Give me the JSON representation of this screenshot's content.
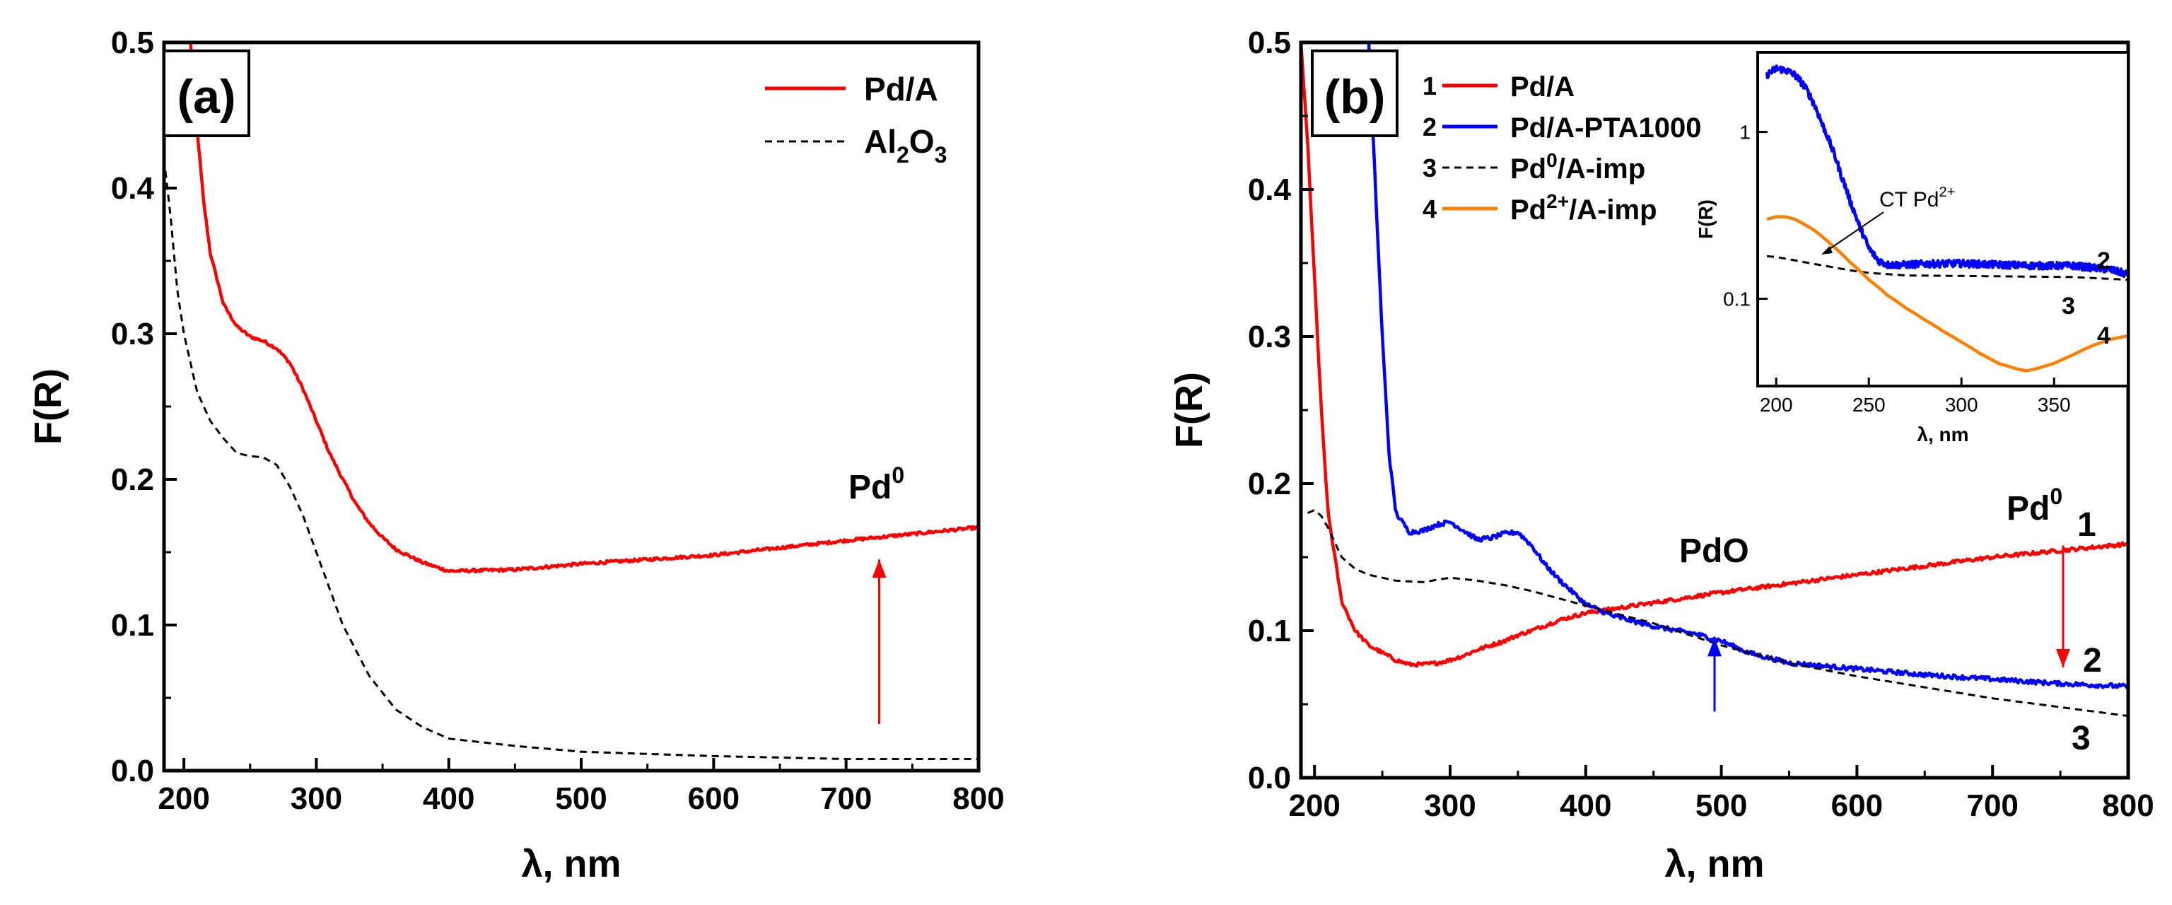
{
  "chart_data": [
    {
      "type": "line",
      "panel_label": "(a)",
      "xlabel": "λ, nm",
      "ylabel": "F(R)",
      "xlim": [
        185,
        800
      ],
      "ylim": [
        0,
        0.5
      ],
      "xticks": [
        "200",
        "300",
        "400",
        "500",
        "600",
        "700",
        "800"
      ],
      "yticks": [
        "0.0",
        "0.1",
        "0.2",
        "0.3",
        "0.4",
        "0.5"
      ],
      "legend": {
        "position": "top-right",
        "entries": [
          {
            "label": "Pd/A",
            "color": "#ff0000",
            "dash": "solid"
          },
          {
            "label": "Al",
            "sub": "2",
            "label_mid": "O",
            "sub2": "3",
            "color": "#000000",
            "dash": "dashed"
          }
        ]
      },
      "series": [
        {
          "name": "Pd/A",
          "color": "#ff0000",
          "dash": "solid",
          "noise": 0.002,
          "x": [
            205,
            210,
            215,
            220,
            230,
            240,
            250,
            260,
            270,
            280,
            290,
            300,
            310,
            320,
            330,
            340,
            350,
            360,
            380,
            400,
            450,
            500,
            600,
            700,
            800
          ],
          "y": [
            0.5,
            0.44,
            0.39,
            0.355,
            0.32,
            0.305,
            0.298,
            0.295,
            0.29,
            0.28,
            0.262,
            0.24,
            0.218,
            0.2,
            0.183,
            0.17,
            0.16,
            0.152,
            0.143,
            0.137,
            0.138,
            0.142,
            0.148,
            0.158,
            0.167
          ]
        },
        {
          "name": "Al2O3",
          "color": "#000000",
          "dash": "dashed",
          "noise": 0,
          "x": [
            185,
            190,
            195,
            200,
            210,
            220,
            230,
            240,
            250,
            260,
            270,
            280,
            290,
            300,
            310,
            320,
            340,
            360,
            380,
            400,
            450,
            500,
            600,
            700,
            800
          ],
          "y": [
            0.42,
            0.38,
            0.33,
            0.3,
            0.26,
            0.24,
            0.228,
            0.218,
            0.216,
            0.215,
            0.21,
            0.195,
            0.175,
            0.15,
            0.125,
            0.1,
            0.065,
            0.042,
            0.03,
            0.022,
            0.017,
            0.013,
            0.01,
            0.008,
            0.008
          ]
        }
      ],
      "annotations": [
        {
          "text": "Pd",
          "sup": "0",
          "x": 725,
          "y": 0.19
        }
      ],
      "arrows": [
        {
          "color": "#ff0000",
          "x": 725,
          "y_from": 0.032,
          "y_to": 0.145
        }
      ]
    },
    {
      "type": "line",
      "panel_label": "(b)",
      "xlabel": "λ, nm",
      "ylabel": "F(R)",
      "xlim": [
        190,
        800
      ],
      "ylim": [
        0,
        0.5
      ],
      "xticks": [
        "200",
        "300",
        "400",
        "500",
        "600",
        "700",
        "800"
      ],
      "yticks": [
        "0.0",
        "0.1",
        "0.2",
        "0.3",
        "0.4",
        "0.5"
      ],
      "legend": {
        "position": "top-left",
        "entries": [
          {
            "num": "1",
            "label": "Pd/A",
            "color": "#ff0000",
            "dash": "solid"
          },
          {
            "num": "2",
            "label": "Pd/A-PTA1000",
            "color": "#0000ff",
            "dash": "solid"
          },
          {
            "num": "3",
            "label": "Pd",
            "sup": "0",
            "label_tail": "/A-imp",
            "color": "#000000",
            "dash": "dashed"
          },
          {
            "num": "4",
            "label": "Pd",
            "sup": "2+",
            "label_tail": "/A-imp",
            "color": "#ff8000",
            "dash": "solid"
          }
        ]
      },
      "series": [
        {
          "name": "Pd/A",
          "color": "#ff0000",
          "dash": "solid",
          "noise": 0.0025,
          "x": [
            190,
            195,
            200,
            205,
            210,
            220,
            230,
            240,
            250,
            260,
            270,
            280,
            290,
            300,
            310,
            320,
            330,
            340,
            350,
            360,
            380,
            400,
            450,
            500,
            600,
            700,
            800
          ],
          "y": [
            0.5,
            0.43,
            0.34,
            0.25,
            0.18,
            0.12,
            0.1,
            0.09,
            0.085,
            0.08,
            0.077,
            0.077,
            0.078,
            0.08,
            0.083,
            0.087,
            0.09,
            0.093,
            0.097,
            0.1,
            0.107,
            0.112,
            0.119,
            0.126,
            0.138,
            0.15,
            0.159
          ]
        },
        {
          "name": "Pd/A-PTA1000",
          "color": "#0000ff",
          "dash": "solid",
          "noise": 0.003,
          "x": [
            240,
            245,
            250,
            255,
            260,
            270,
            280,
            290,
            300,
            310,
            320,
            330,
            340,
            350,
            360,
            370,
            380,
            400,
            420,
            450,
            480,
            500,
            520,
            550,
            600,
            650,
            700,
            750,
            800
          ],
          "y": [
            0.5,
            0.4,
            0.3,
            0.22,
            0.18,
            0.167,
            0.168,
            0.172,
            0.174,
            0.168,
            0.162,
            0.163,
            0.166,
            0.167,
            0.158,
            0.145,
            0.135,
            0.118,
            0.11,
            0.103,
            0.098,
            0.093,
            0.085,
            0.078,
            0.074,
            0.07,
            0.067,
            0.064,
            0.062
          ]
        },
        {
          "name": "Pd0/A-imp",
          "color": "#000000",
          "dash": "dashed",
          "noise": 0,
          "x": [
            195,
            200,
            205,
            210,
            215,
            220,
            230,
            240,
            250,
            260,
            280,
            300,
            320,
            340,
            360,
            380,
            400,
            450,
            500,
            550,
            600,
            700,
            800
          ],
          "y": [
            0.18,
            0.182,
            0.178,
            0.17,
            0.16,
            0.15,
            0.142,
            0.138,
            0.136,
            0.134,
            0.133,
            0.136,
            0.134,
            0.131,
            0.127,
            0.122,
            0.117,
            0.105,
            0.09,
            0.078,
            0.069,
            0.054,
            0.042
          ]
        }
      ],
      "annotations": [
        {
          "text": "PdO",
          "x": 490,
          "y": 0.148
        },
        {
          "text": "Pd",
          "sup": "0",
          "x": 722,
          "y": 0.172
        },
        {
          "text": "1",
          "x": 775,
          "y": 0.165
        },
        {
          "text": "2",
          "x": 777,
          "y": 0.075
        },
        {
          "text": "3",
          "x": 770,
          "y": 0.018
        }
      ],
      "arrows": [
        {
          "color": "#ff0000",
          "x": 752,
          "y_from": 0.158,
          "y_to": 0.075
        },
        {
          "color": "#0000ff",
          "x": 495,
          "y_from": 0.045,
          "y_to": 0.095
        }
      ],
      "inset": {
        "type": "line",
        "yscale": "log",
        "xlabel": "λ, nm",
        "ylabel": "F(R)",
        "xlim": [
          190,
          390
        ],
        "ylim": [
          0.03,
          3
        ],
        "xticks": [
          "200",
          "250",
          "300",
          "350"
        ],
        "yticks": [
          "0.1",
          "1"
        ],
        "annotation": {
          "text": "CT  Pd",
          "sup": "2+"
        },
        "series": [
          {
            "name": "2",
            "color": "#0000ff",
            "dash": "solid",
            "noise": 0.012,
            "x": [
              195,
              200,
              205,
              210,
              215,
              220,
              225,
              230,
              235,
              240,
              245,
              250,
              255,
              260,
              270,
              280,
              300,
              320,
              340,
              360,
              380,
              390
            ],
            "y": [
              2.2,
              2.4,
              2.35,
              2.2,
              1.9,
              1.5,
              1.1,
              0.8,
              0.55,
              0.38,
              0.27,
              0.2,
              0.17,
              0.16,
              0.16,
              0.162,
              0.163,
              0.16,
              0.158,
              0.158,
              0.15,
              0.14
            ]
          },
          {
            "name": "3",
            "color": "#000000",
            "dash": "dashed",
            "noise": 0,
            "x": [
              195,
              200,
              210,
              220,
              230,
              240,
              250,
              270,
              300,
              330,
              360,
              390
            ],
            "y": [
              0.18,
              0.178,
              0.17,
              0.162,
              0.155,
              0.148,
              0.143,
              0.138,
              0.137,
              0.136,
              0.135,
              0.13
            ]
          },
          {
            "name": "4",
            "color": "#ff8000",
            "dash": "solid",
            "noise": 0,
            "x": [
              195,
              200,
              205,
              210,
              215,
              220,
              230,
              240,
              250,
              260,
              270,
              280,
              290,
              300,
              310,
              320,
              330,
              335,
              340,
              350,
              360,
              370,
              380,
              390
            ],
            "y": [
              0.3,
              0.31,
              0.31,
              0.3,
              0.28,
              0.26,
              0.21,
              0.165,
              0.13,
              0.105,
              0.088,
              0.075,
              0.064,
              0.055,
              0.047,
              0.041,
              0.038,
              0.037,
              0.038,
              0.041,
              0.046,
              0.052,
              0.057,
              0.06
            ]
          }
        ],
        "curve_labels": [
          "2",
          "3",
          "4"
        ]
      }
    }
  ]
}
